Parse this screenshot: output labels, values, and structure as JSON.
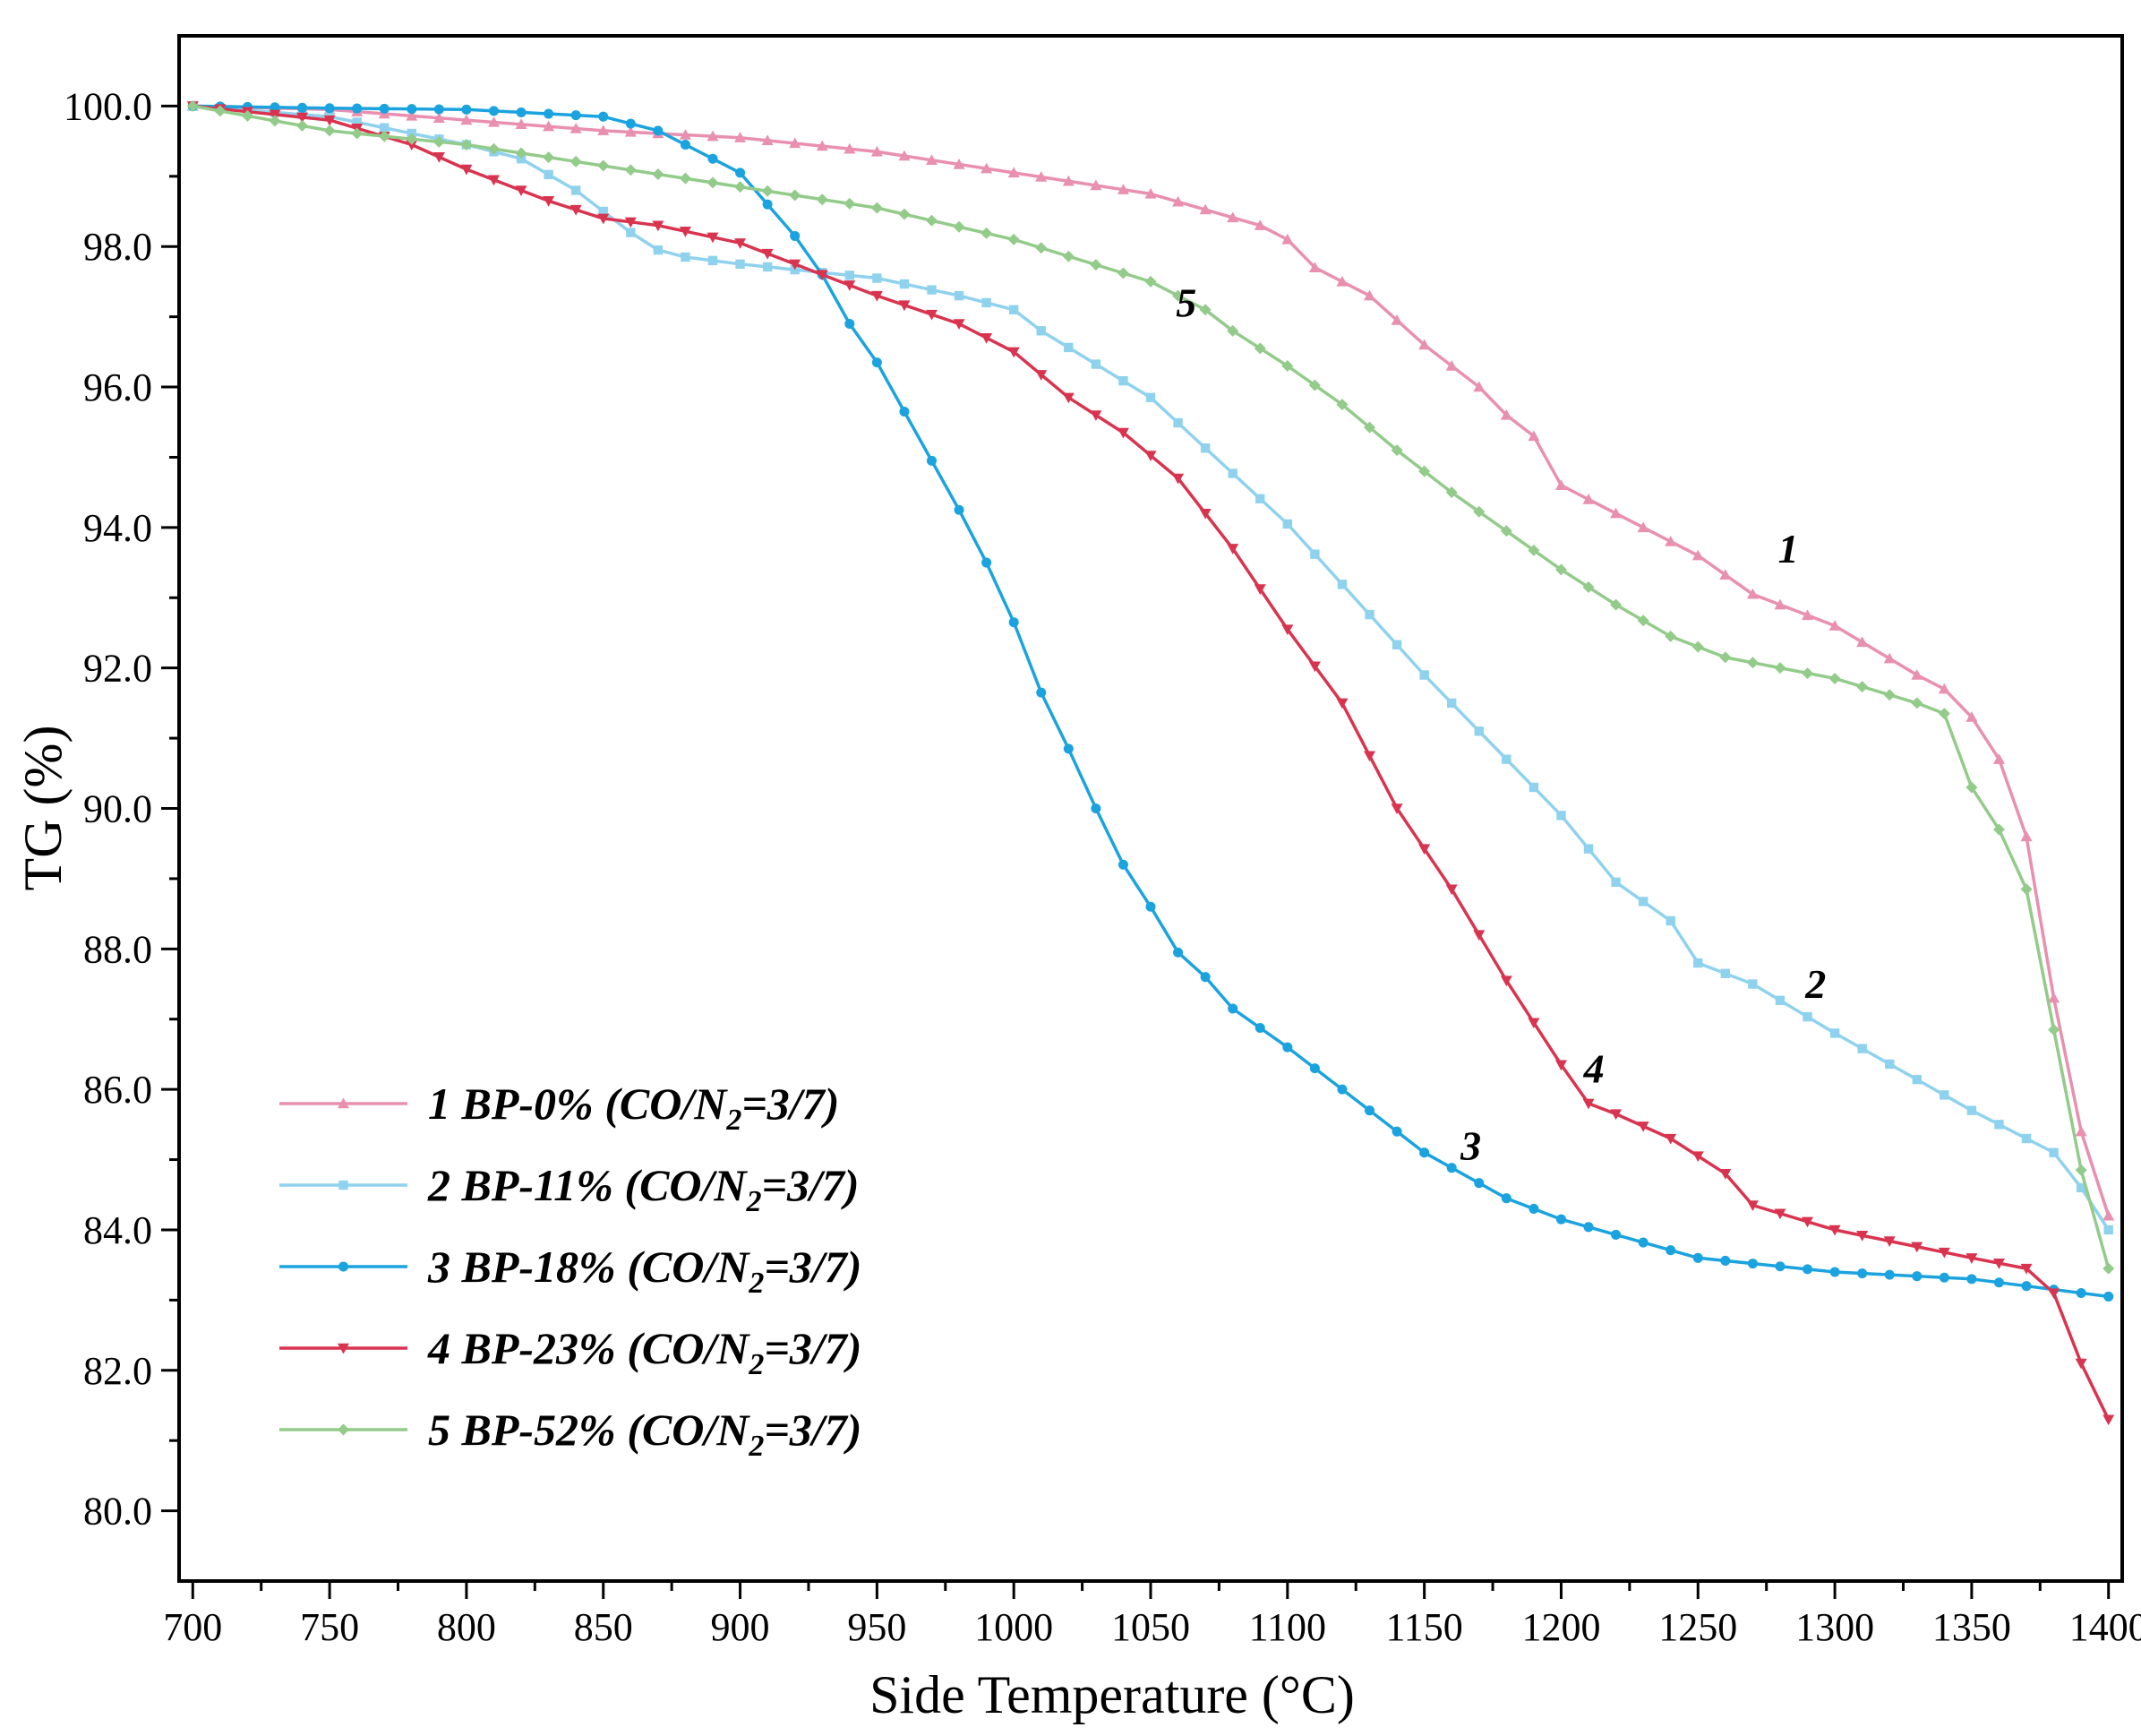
{
  "chart_data": {
    "type": "line",
    "title": "",
    "xlabel": "Side Temperature (°C)",
    "ylabel": "TG (%)",
    "xlim": [
      695,
      1405
    ],
    "ylim": [
      79,
      101
    ],
    "x_ticks": [
      700,
      750,
      800,
      850,
      900,
      950,
      1000,
      1050,
      1100,
      1150,
      1200,
      1250,
      1300,
      1350,
      1400
    ],
    "x_tick_labels": [
      "700",
      "750",
      "800",
      "850",
      "900",
      "950",
      "1000",
      "1050",
      "1100",
      "1150",
      "1200",
      "1250",
      "1300",
      "1350",
      "1400"
    ],
    "y_ticks": [
      80,
      82,
      84,
      86,
      88,
      90,
      92,
      94,
      96,
      98,
      100
    ],
    "y_tick_labels": [
      "80.0",
      "82.0",
      "84.0",
      "86.0",
      "88.0",
      "90.0",
      "92.0",
      "94.0",
      "96.0",
      "98.0",
      "100.0"
    ],
    "grid": false,
    "legend_position": "bottom-left",
    "series": [
      {
        "name": "1 BP-0% (CO/N2=3/7)",
        "legend_parts": [
          "1 BP-0% (CO/N",
          "2",
          "=3/7)"
        ],
        "curve_label": "1",
        "color": "#E98FB0",
        "marker": "triangle-up",
        "x": [
          700,
          750,
          800,
          850,
          900,
          950,
          1000,
          1050,
          1090,
          1100,
          1110,
          1130,
          1150,
          1170,
          1180,
          1190,
          1200,
          1220,
          1250,
          1270,
          1300,
          1330,
          1340,
          1350,
          1360,
          1370,
          1380,
          1390,
          1400
        ],
        "y": [
          100.0,
          99.95,
          99.8,
          99.65,
          99.55,
          99.35,
          99.05,
          98.75,
          98.3,
          98.1,
          97.7,
          97.3,
          96.6,
          96.0,
          95.6,
          95.3,
          94.6,
          94.2,
          93.6,
          93.05,
          92.6,
          91.9,
          91.7,
          91.3,
          90.7,
          89.6,
          87.3,
          85.4,
          84.2
        ]
      },
      {
        "name": "2 BP-11% (CO/N2=3/7)",
        "legend_parts": [
          "2 BP-11% (CO/N",
          "2",
          "=3/7)"
        ],
        "curve_label": "2",
        "color": "#8FD2EE",
        "marker": "square",
        "x": [
          700,
          750,
          800,
          820,
          840,
          860,
          870,
          880,
          900,
          950,
          980,
          1000,
          1010,
          1050,
          1100,
          1150,
          1200,
          1220,
          1240,
          1250,
          1270,
          1300,
          1350,
          1380,
          1390,
          1400
        ],
        "y": [
          100.0,
          99.85,
          99.45,
          99.25,
          98.8,
          98.2,
          97.95,
          97.85,
          97.75,
          97.55,
          97.3,
          97.1,
          96.8,
          95.85,
          94.05,
          91.9,
          89.9,
          88.95,
          88.4,
          87.8,
          87.5,
          86.8,
          85.7,
          85.1,
          84.6,
          84.0
        ]
      },
      {
        "name": "3 BP-18% (CO/N2=3/7)",
        "legend_parts": [
          "3 BP-18% (CO/N",
          "2",
          "=3/7)"
        ],
        "curve_label": "3",
        "color": "#1BA3DF",
        "marker": "circle",
        "x": [
          700,
          750,
          800,
          850,
          870,
          890,
          900,
          910,
          920,
          930,
          940,
          950,
          960,
          970,
          980,
          990,
          1000,
          1010,
          1020,
          1030,
          1040,
          1050,
          1060,
          1070,
          1080,
          1100,
          1150,
          1180,
          1200,
          1250,
          1300,
          1350,
          1400
        ],
        "y": [
          100.0,
          99.97,
          99.95,
          99.85,
          99.65,
          99.25,
          99.05,
          98.6,
          98.15,
          97.6,
          96.9,
          96.35,
          95.65,
          94.95,
          94.25,
          93.5,
          92.65,
          91.65,
          90.85,
          90.0,
          89.2,
          88.6,
          87.95,
          87.6,
          87.15,
          86.6,
          85.1,
          84.45,
          84.15,
          83.6,
          83.4,
          83.3,
          83.05
        ]
      },
      {
        "name": "4 BP-23% (CO/N2=3/7)",
        "legend_parts": [
          "4 BP-23% (CO/N",
          "2",
          "=3/7)"
        ],
        "curve_label": "4",
        "color": "#D9344F",
        "marker": "triangle-down",
        "x": [
          700,
          750,
          780,
          800,
          830,
          850,
          870,
          900,
          930,
          950,
          980,
          1000,
          1020,
          1040,
          1060,
          1080,
          1100,
          1120,
          1140,
          1160,
          1180,
          1200,
          1210,
          1220,
          1240,
          1260,
          1270,
          1300,
          1350,
          1370,
          1380,
          1390,
          1400
        ],
        "y": [
          100.0,
          99.8,
          99.45,
          99.1,
          98.65,
          98.4,
          98.3,
          98.05,
          97.6,
          97.3,
          96.9,
          96.5,
          95.85,
          95.35,
          94.7,
          93.7,
          92.55,
          91.5,
          90.0,
          88.85,
          87.55,
          86.35,
          85.8,
          85.65,
          85.3,
          84.8,
          84.35,
          84.0,
          83.6,
          83.45,
          83.1,
          82.1,
          81.3
        ]
      },
      {
        "name": "5 BP-52% (CO/N2=3/7)",
        "legend_parts": [
          "5 BP-52% (CO/N",
          "2",
          "=3/7)"
        ],
        "curve_label": "5",
        "color": "#93CB8A",
        "marker": "diamond",
        "x": [
          700,
          750,
          800,
          850,
          900,
          950,
          1000,
          1050,
          1070,
          1080,
          1100,
          1120,
          1140,
          1160,
          1180,
          1200,
          1220,
          1240,
          1260,
          1300,
          1330,
          1340,
          1350,
          1360,
          1370,
          1380,
          1390,
          1400
        ],
        "y": [
          100.0,
          99.65,
          99.45,
          99.15,
          98.85,
          98.55,
          98.1,
          97.5,
          97.1,
          96.8,
          96.3,
          95.75,
          95.1,
          94.5,
          93.95,
          93.4,
          92.9,
          92.45,
          92.15,
          91.85,
          91.5,
          91.35,
          90.3,
          89.7,
          88.85,
          86.85,
          84.85,
          83.45
        ]
      }
    ],
    "annotations": [
      {
        "text": "1",
        "x": 1283,
        "y": 93.5
      },
      {
        "text": "2",
        "x": 1293,
        "y": 87.3
      },
      {
        "text": "3",
        "x": 1167,
        "y": 85.0
      },
      {
        "text": "4",
        "x": 1212,
        "y": 86.1
      },
      {
        "text": "5",
        "x": 1063,
        "y": 97.0
      }
    ]
  }
}
